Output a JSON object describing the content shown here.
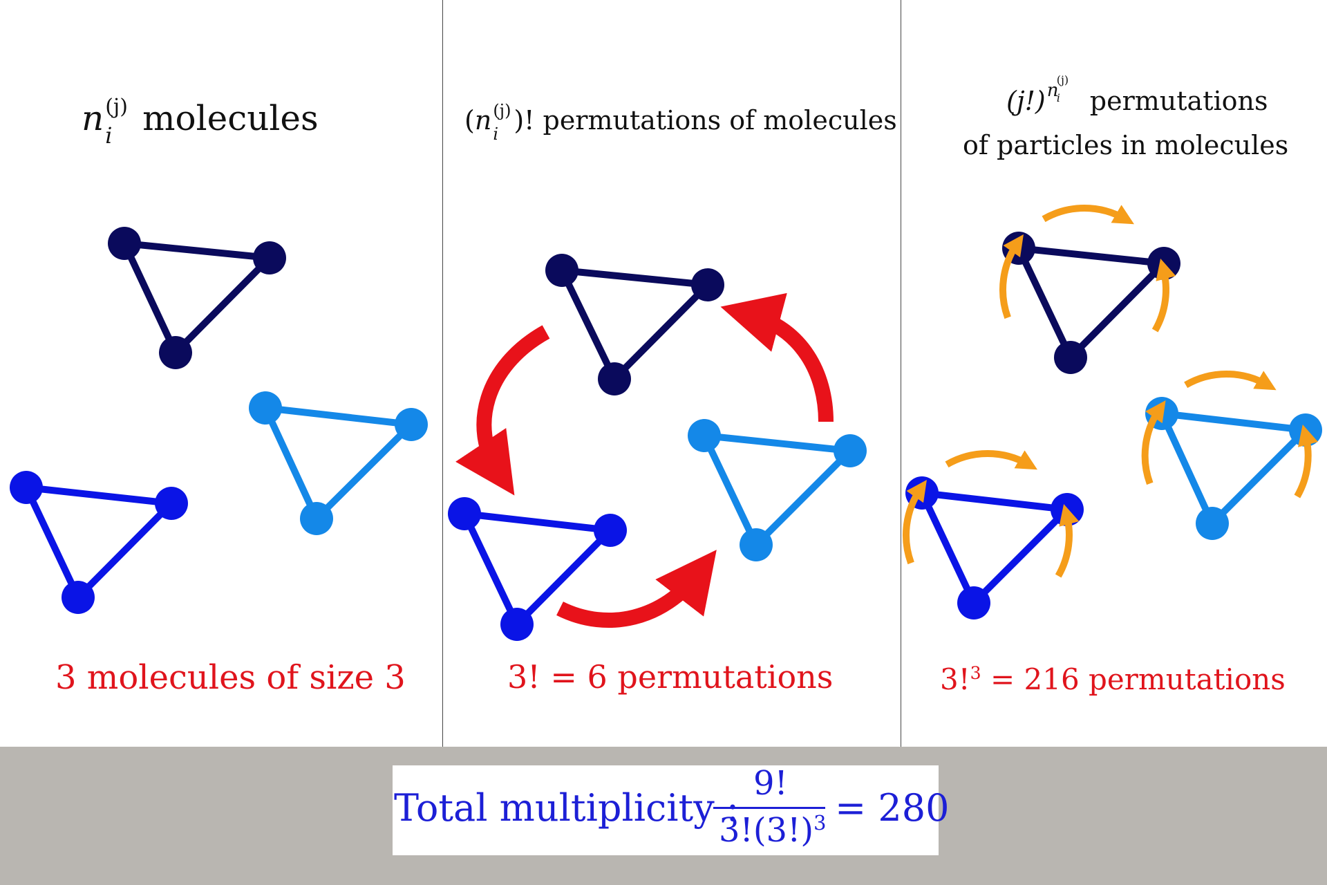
{
  "panels": [
    {
      "heading": {
        "var": "n",
        "sub": "i",
        "sup": "(j)",
        "text": " molecules"
      },
      "caption": "3 molecules of size 3"
    },
    {
      "heading": {
        "open": "(",
        "var": "n",
        "sub": "i",
        "sup": "(j)",
        "close": ")! permutations of molecules"
      },
      "caption": "3! = 6 permutations"
    },
    {
      "heading": {
        "line1_var": "(j!)",
        "line1_exp": "n",
        "line1_exp_sub": "i",
        "line1_exp_sup": "(j)",
        "line1_text": " permutations",
        "line2": "of particles in molecules"
      },
      "caption_base": "3!",
      "caption_exp": "3",
      "caption_rest": " = 216 permutations"
    }
  ],
  "formula": {
    "lead": "Total multiplicity :",
    "numerator": "9!",
    "denominator_base": "3!(3!)",
    "denominator_exp": "3",
    "tail": "= 280"
  },
  "colors": {
    "molecule_dark": "#0a0a5c",
    "molecule_blue": "#0a14e6",
    "molecule_light": "#1488e8",
    "arrow_red": "#e8121a",
    "arrow_orange": "#f59d1a",
    "caption_red": "#e0141c",
    "formula_blue": "#1c1fd6"
  }
}
